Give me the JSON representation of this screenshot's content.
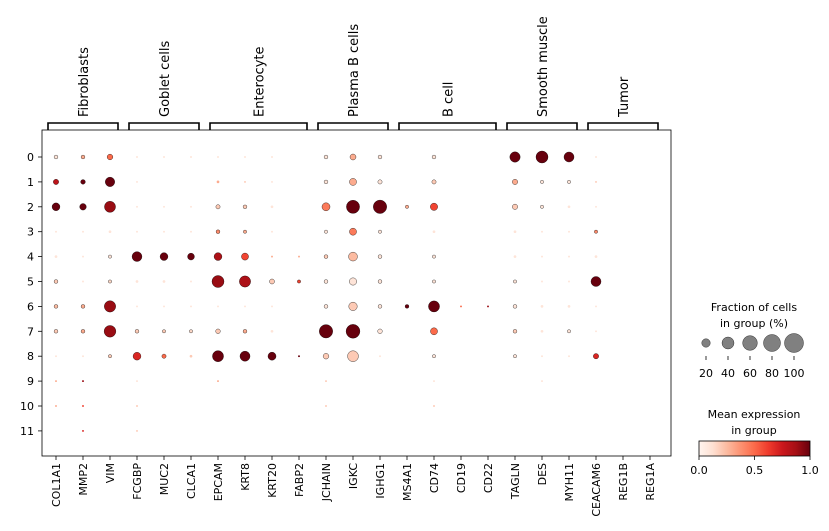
{
  "chart_data": {
    "type": "dotplot",
    "genes": [
      "COL1A1",
      "MMP2",
      "VIM",
      "FCGBP",
      "MUC2",
      "CLCA1",
      "EPCAM",
      "KRT8",
      "KRT20",
      "FABP2",
      "JCHAIN",
      "IGKC",
      "IGHG1",
      "MS4A1",
      "CD74",
      "CD19",
      "CD22",
      "TAGLN",
      "DES",
      "MYH11",
      "CEACAM6",
      "REG1B",
      "REG1A"
    ],
    "groups": [
      "0",
      "1",
      "2",
      "3",
      "4",
      "5",
      "6",
      "7",
      "8",
      "9",
      "10",
      "11"
    ],
    "cell_types": [
      {
        "label": "Fibroblasts",
        "start": 0,
        "end": 2
      },
      {
        "label": "Goblet cells",
        "start": 3,
        "end": 5
      },
      {
        "label": "Enterocyte",
        "start": 6,
        "end": 9
      },
      {
        "label": "Plasma B cells",
        "start": 10,
        "end": 12
      },
      {
        "label": "B cell",
        "start": 13,
        "end": 16
      },
      {
        "label": "Smooth muscle",
        "start": 17,
        "end": 19
      },
      {
        "label": "Tumor",
        "start": 20,
        "end": 22
      }
    ],
    "fraction": [
      [
        4,
        4,
        9,
        1,
        1,
        1,
        1,
        1,
        1,
        0,
        4,
        10,
        4,
        0,
        4,
        0,
        0,
        30,
        40,
        28,
        1,
        0,
        0
      ],
      [
        8,
        6,
        25,
        1,
        0,
        0,
        2,
        1,
        1,
        0,
        4,
        14,
        5,
        0,
        5,
        0,
        0,
        8,
        3,
        3,
        1,
        0,
        0
      ],
      [
        17,
        12,
        34,
        1,
        1,
        1,
        5,
        4,
        2,
        0,
        18,
        48,
        50,
        3,
        15,
        0,
        0,
        8,
        3,
        2,
        1,
        0,
        0
      ],
      [
        1,
        1,
        2,
        1,
        1,
        1,
        4,
        3,
        1,
        0,
        3,
        14,
        3,
        0,
        2,
        0,
        0,
        2,
        1,
        1,
        3,
        0,
        0
      ],
      [
        2,
        1,
        3,
        27,
        17,
        13,
        17,
        14,
        1,
        1,
        4,
        22,
        4,
        0,
        3,
        0,
        0,
        2,
        1,
        1,
        2,
        0,
        0
      ],
      [
        4,
        1,
        3,
        2,
        2,
        1,
        40,
        35,
        7,
        3,
        4,
        15,
        4,
        0,
        3,
        0,
        0,
        3,
        1,
        1,
        28,
        0,
        0
      ],
      [
        4,
        4,
        36,
        1,
        1,
        1,
        1,
        1,
        1,
        0,
        4,
        20,
        4,
        4,
        34,
        1,
        1,
        4,
        2,
        2,
        1,
        0,
        0
      ],
      [
        4,
        4,
        38,
        4,
        3,
        3,
        6,
        4,
        2,
        0,
        50,
        53,
        6,
        0,
        14,
        0,
        0,
        4,
        2,
        3,
        1,
        0,
        0
      ],
      [
        1,
        1,
        3,
        17,
        5,
        2,
        34,
        28,
        18,
        1,
        9,
        33,
        1,
        0,
        3,
        0,
        0,
        3,
        1,
        1,
        8,
        0,
        0
      ],
      [
        1,
        1,
        0,
        1,
        0,
        0,
        1,
        0,
        0,
        0,
        1,
        0,
        0,
        0,
        1,
        0,
        0,
        0,
        1,
        0,
        0,
        0,
        0
      ],
      [
        1,
        1,
        0,
        1,
        0,
        0,
        0,
        0,
        0,
        0,
        1,
        0,
        0,
        0,
        1,
        0,
        0,
        0,
        0,
        0,
        0,
        0,
        0
      ],
      [
        0,
        1,
        0,
        1,
        0,
        0,
        0,
        0,
        0,
        0,
        0,
        0,
        0,
        0,
        0,
        0,
        0,
        0,
        0,
        0,
        0,
        0,
        0
      ]
    ],
    "expression": [
      [
        0.1,
        0.3,
        0.5,
        0.1,
        0.1,
        0.1,
        0.1,
        0.1,
        0.1,
        0.1,
        0.1,
        0.3,
        0.1,
        0.1,
        0.1,
        0.1,
        0.1,
        1.0,
        1.0,
        1.0,
        0.1,
        0.1,
        0.1
      ],
      [
        0.8,
        1.0,
        1.0,
        0.1,
        0.1,
        0.1,
        0.3,
        0.2,
        0.1,
        0.1,
        0.1,
        0.3,
        0.1,
        0.1,
        0.2,
        0.1,
        0.1,
        0.3,
        0.1,
        0.1,
        0.2,
        0.1,
        0.1
      ],
      [
        1.0,
        1.0,
        0.9,
        0.1,
        0.1,
        0.1,
        0.2,
        0.2,
        0.1,
        0.1,
        0.45,
        1.0,
        1.0,
        0.3,
        0.6,
        0.1,
        0.1,
        0.2,
        0.1,
        0.1,
        0.1,
        0.1,
        0.1
      ],
      [
        0.1,
        0.1,
        0.1,
        0.1,
        0.1,
        0.1,
        0.4,
        0.3,
        0.1,
        0.1,
        0.1,
        0.45,
        0.1,
        0.1,
        0.1,
        0.1,
        0.1,
        0.1,
        0.1,
        0.1,
        0.4,
        0.1,
        0.1
      ],
      [
        0.1,
        0.1,
        0.1,
        1.0,
        1.0,
        1.0,
        0.85,
        0.6,
        0.3,
        0.3,
        0.2,
        0.25,
        0.1,
        0.1,
        0.1,
        0.1,
        0.1,
        0.1,
        0.1,
        0.1,
        0.1,
        0.1,
        0.1
      ],
      [
        0.2,
        0.1,
        0.15,
        0.1,
        0.1,
        0.1,
        0.9,
        0.85,
        0.2,
        0.6,
        0.1,
        0.1,
        0.1,
        0.1,
        0.1,
        0.1,
        0.1,
        0.1,
        0.1,
        0.1,
        1.0,
        0.1,
        0.1
      ],
      [
        0.25,
        0.3,
        0.9,
        0.1,
        0.1,
        0.1,
        0.1,
        0.1,
        0.1,
        0.1,
        0.1,
        0.2,
        0.1,
        1.0,
        1.0,
        0.5,
        0.9,
        0.1,
        0.1,
        0.1,
        0.1,
        0.1,
        0.1
      ],
      [
        0.2,
        0.3,
        0.9,
        0.2,
        0.2,
        0.15,
        0.2,
        0.3,
        0.1,
        0.1,
        1.0,
        1.0,
        0.1,
        0.1,
        0.5,
        0.1,
        0.1,
        0.2,
        0.1,
        0.1,
        0.1,
        0.1,
        0.1
      ],
      [
        0.1,
        0.1,
        0.2,
        0.7,
        0.5,
        0.2,
        1.0,
        1.0,
        1.0,
        1.0,
        0.2,
        0.2,
        0.1,
        0.1,
        0.1,
        0.1,
        0.1,
        0.1,
        0.1,
        0.1,
        0.7,
        0.1,
        0.1
      ],
      [
        0.3,
        0.9,
        0.1,
        0.1,
        0.1,
        0.1,
        0.3,
        0.1,
        0.1,
        0.1,
        0.2,
        0.1,
        0.1,
        0.1,
        0.1,
        0.1,
        0.1,
        0.1,
        0.1,
        0.1,
        0.1,
        0.1,
        0.1
      ],
      [
        0.3,
        0.6,
        0.1,
        0.2,
        0.1,
        0.1,
        0.1,
        0.1,
        0.1,
        0.1,
        0.2,
        0.1,
        0.1,
        0.1,
        0.2,
        0.1,
        0.1,
        0.1,
        0.1,
        0.1,
        0.1,
        0.1,
        0.1
      ],
      [
        0.1,
        0.7,
        0.1,
        0.2,
        0.1,
        0.1,
        0.1,
        0.1,
        0.1,
        0.1,
        0.1,
        0.1,
        0.1,
        0.1,
        0.1,
        0.1,
        0.1,
        0.1,
        0.1,
        0.1,
        0.1,
        0.1,
        0.1
      ]
    ],
    "size_legend": {
      "title_line1": "Fraction of cells",
      "title_line2": "in group (%)",
      "values": [
        20,
        40,
        60,
        80,
        100
      ],
      "labels": [
        "20",
        "40",
        "60",
        "80",
        "100"
      ]
    },
    "color_legend": {
      "title_line1": "Mean expression",
      "title_line2": "in group",
      "range": [
        0,
        1
      ],
      "ticks": [
        "0.0",
        "0.5",
        "1.0"
      ]
    },
    "colormap": [
      "#fff5f0",
      "#fee0d2",
      "#fcbba1",
      "#fc9272",
      "#fb6a4a",
      "#ef3b2c",
      "#cb181d",
      "#a50f15",
      "#67000d"
    ]
  }
}
